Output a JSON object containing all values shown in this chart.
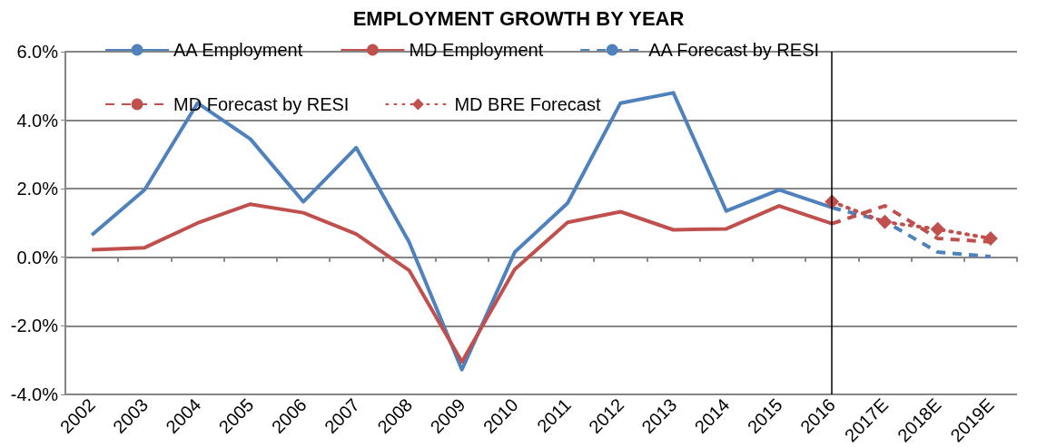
{
  "chart_data": {
    "type": "line",
    "title": "EMPLOYMENT GROWTH BY YEAR",
    "categories": [
      "2002",
      "2003",
      "2004",
      "2005",
      "2006",
      "2007",
      "2008",
      "2009",
      "2010",
      "2011",
      "2012",
      "2013",
      "2014",
      "2015",
      "2016",
      "2017E",
      "2018E",
      "2019E"
    ],
    "series": [
      {
        "name": "AA Employment",
        "color": "#4f81bd",
        "line_style": "solid",
        "marker": "none",
        "values": [
          0.65,
          1.97,
          4.5,
          3.45,
          1.62,
          3.2,
          0.45,
          -3.28,
          0.15,
          1.58,
          4.5,
          4.8,
          1.35,
          1.97,
          1.45,
          null,
          null,
          null
        ]
      },
      {
        "name": "MD Employment",
        "color": "#c0504d",
        "line_style": "solid",
        "marker": "none",
        "values": [
          0.22,
          0.28,
          1.0,
          1.55,
          1.3,
          0.68,
          -0.38,
          -3.05,
          -0.35,
          1.02,
          1.33,
          0.8,
          0.83,
          1.5,
          0.98,
          null,
          null,
          null
        ]
      },
      {
        "name": "AA Forecast by RESI",
        "color": "#4f81bd",
        "line_style": "dashed",
        "marker": "none",
        "values": [
          null,
          null,
          null,
          null,
          null,
          null,
          null,
          null,
          null,
          null,
          null,
          null,
          null,
          null,
          1.45,
          1.05,
          0.15,
          0.02
        ]
      },
      {
        "name": "MD Forecast by RESI",
        "color": "#c0504d",
        "line_style": "dashed",
        "marker": "none",
        "values": [
          null,
          null,
          null,
          null,
          null,
          null,
          null,
          null,
          null,
          null,
          null,
          null,
          null,
          null,
          0.98,
          1.5,
          0.55,
          0.45
        ]
      },
      {
        "name": "MD BRE Forecast",
        "color": "#c0504d",
        "line_style": "dotted",
        "marker": "diamond",
        "values": [
          null,
          null,
          null,
          null,
          null,
          null,
          null,
          null,
          null,
          null,
          null,
          null,
          null,
          null,
          1.62,
          1.03,
          0.82,
          0.55
        ]
      }
    ],
    "ylim": [
      -4,
      6
    ],
    "yticks": [
      {
        "value": -4,
        "label": "-4.0%"
      },
      {
        "value": -2,
        "label": "-2.0%"
      },
      {
        "value": 0,
        "label": "0.0%"
      },
      {
        "value": 2,
        "label": "2.0%"
      },
      {
        "value": 4,
        "label": "4.0%"
      },
      {
        "value": 6,
        "label": "6.0%"
      }
    ],
    "grid": "y",
    "legend": "top",
    "ref_lines": [
      {
        "axis": "x",
        "value": "2016",
        "color": "#000000",
        "line_style": "solid"
      }
    ]
  }
}
